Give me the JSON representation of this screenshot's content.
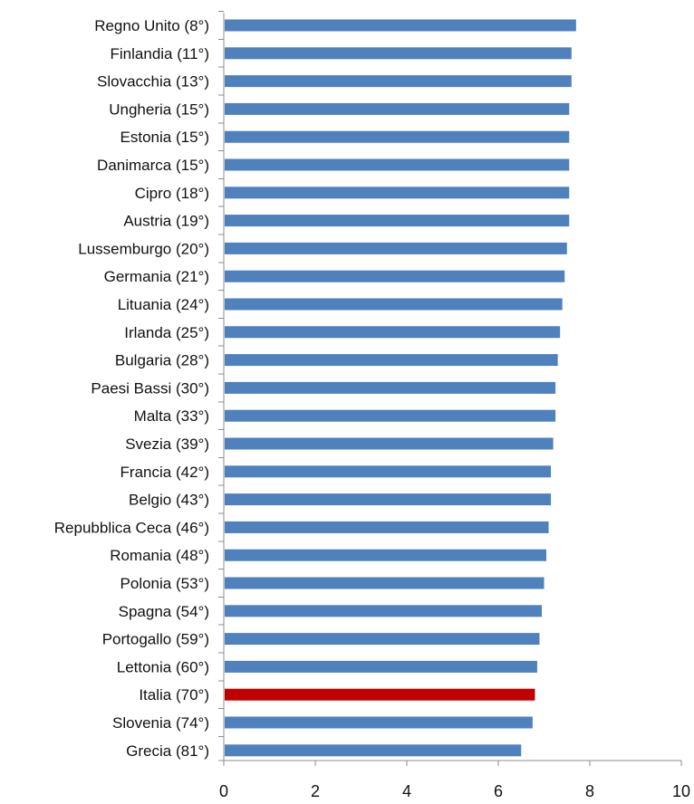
{
  "chart_data": {
    "type": "bar",
    "orientation": "horizontal",
    "categories": [
      "Regno Unito (8°)",
      "Finlandia (11°)",
      "Slovacchia (13°)",
      "Ungheria (15°)",
      "Estonia (15°)",
      "Danimarca (15°)",
      "Cipro (18°)",
      "Austria (19°)",
      "Lussemburgo (20°)",
      "Germania (21°)",
      "Lituania (24°)",
      "Irlanda (25°)",
      "Bulgaria (28°)",
      "Paesi Bassi (30°)",
      "Malta (33°)",
      "Svezia (39°)",
      "Francia (42°)",
      "Belgio (43°)",
      "Repubblica Ceca (46°)",
      "Romania (48°)",
      "Polonia (53°)",
      "Spagna (54°)",
      "Portogallo (59°)",
      "Lettonia (60°)",
      "Italia (70°)",
      "Slovenia (74°)",
      "Grecia (81°)"
    ],
    "values": [
      7.7,
      7.6,
      7.6,
      7.55,
      7.55,
      7.55,
      7.55,
      7.55,
      7.5,
      7.45,
      7.4,
      7.35,
      7.3,
      7.25,
      7.25,
      7.2,
      7.15,
      7.15,
      7.1,
      7.05,
      7.0,
      6.95,
      6.9,
      6.85,
      6.8,
      6.75,
      6.5
    ],
    "bar_colors": [
      "#4f81bd",
      "#4f81bd",
      "#4f81bd",
      "#4f81bd",
      "#4f81bd",
      "#4f81bd",
      "#4f81bd",
      "#4f81bd",
      "#4f81bd",
      "#4f81bd",
      "#4f81bd",
      "#4f81bd",
      "#4f81bd",
      "#4f81bd",
      "#4f81bd",
      "#4f81bd",
      "#4f81bd",
      "#4f81bd",
      "#4f81bd",
      "#4f81bd",
      "#4f81bd",
      "#4f81bd",
      "#4f81bd",
      "#4f81bd",
      "#c00000",
      "#4f81bd",
      "#4f81bd"
    ],
    "xlim": [
      0,
      10
    ],
    "xticks": [
      0,
      2,
      4,
      6,
      8,
      10
    ],
    "xtick_labels": [
      "0",
      "2",
      "4",
      "6",
      "8",
      "10"
    ],
    "grid": false,
    "legend": false,
    "colors": {
      "default_bar": "#4f81bd",
      "highlight_bar": "#c00000",
      "axis": "#8c8c8c"
    }
  }
}
